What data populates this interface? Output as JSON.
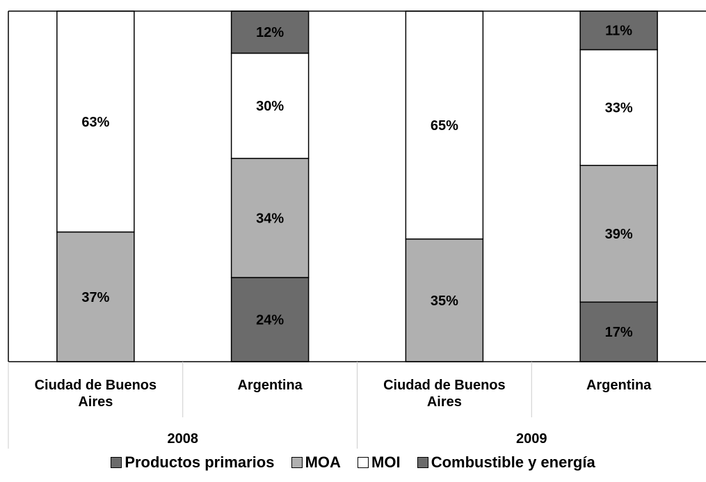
{
  "chart_data": {
    "type": "bar",
    "stacked": true,
    "normalized_percent": true,
    "groups": [
      {
        "label": "2008",
        "categories": [
          "Ciudad de Buenos Aires",
          "Argentina"
        ]
      },
      {
        "label": "2009",
        "categories": [
          "Ciudad de Buenos Aires",
          "Argentina"
        ]
      }
    ],
    "category_lines": [
      [
        "Ciudad de Buenos",
        "Aires"
      ],
      [
        "Argentina"
      ]
    ],
    "series": [
      {
        "name": "Productos primarios",
        "color": "#6b6b6b",
        "values": [
          0,
          0,
          0,
          0
        ],
        "labels": [
          "",
          "",
          "",
          ""
        ]
      },
      {
        "name": "MOA",
        "color": "#b0b0b0",
        "values": [
          37,
          34,
          35,
          39
        ],
        "labels": [
          "37%",
          "34%",
          "35%",
          "39%"
        ]
      },
      {
        "name": "MOI",
        "color": "#ffffff",
        "values": [
          63,
          30,
          65,
          33
        ],
        "labels": [
          "63%",
          "30%",
          "65%",
          "33%"
        ]
      },
      {
        "name": "Combustible y energía",
        "color": "#6b6b6b",
        "values": [
          0,
          12,
          0,
          11
        ],
        "labels": [
          "",
          "12%",
          "",
          "11%"
        ]
      }
    ],
    "bottom_series": {
      "name": "Productos primarios",
      "values": [
        0,
        24,
        0,
        17
      ],
      "labels": [
        "",
        "24%",
        "",
        "17%"
      ]
    },
    "ylim": [
      0,
      100
    ],
    "grid": false,
    "legend_position": "bottom"
  },
  "legend": [
    {
      "label": "Productos primarios",
      "color": "#6b6b6b"
    },
    {
      "label": "MOA",
      "color": "#b0b0b0"
    },
    {
      "label": "MOI",
      "color": "#ffffff"
    },
    {
      "label": "Combustible y energía",
      "color": "#6b6b6b"
    }
  ]
}
